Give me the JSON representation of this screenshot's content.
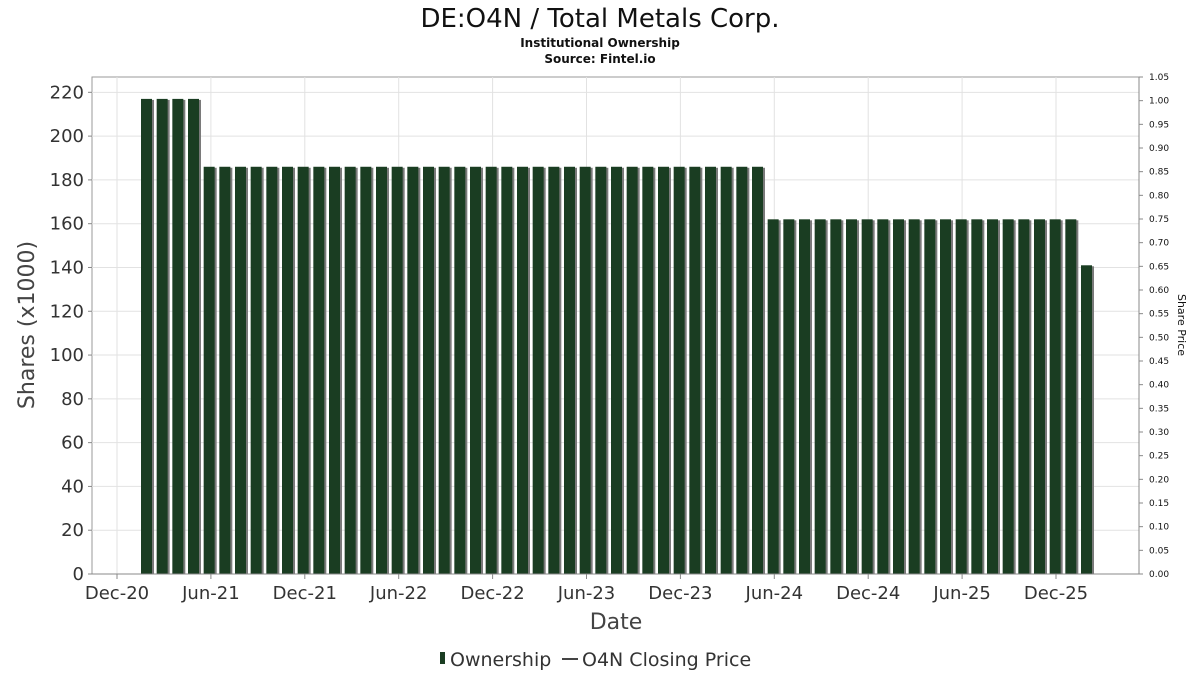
{
  "chart_data": {
    "type": "bar",
    "title": "DE:O4N / Total Metals Corp.",
    "subtitle": "Institutional Ownership",
    "source": "Source: Fintel.io",
    "xlabel": "Date",
    "ylabel": "Shares (x1000)",
    "y2label": "Share Price",
    "ylim": [
      0,
      227
    ],
    "y2lim": [
      0,
      1.05
    ],
    "yticks": [
      0,
      20,
      40,
      60,
      80,
      100,
      120,
      140,
      160,
      180,
      200,
      220
    ],
    "y2ticks": [
      "0.00",
      "0.05",
      "0.10",
      "0.15",
      "0.20",
      "0.25",
      "0.30",
      "0.35",
      "0.40",
      "0.45",
      "0.50",
      "0.55",
      "0.60",
      "0.65",
      "0.70",
      "0.75",
      "0.80",
      "0.85",
      "0.90",
      "0.95",
      "1.00",
      "1.05"
    ],
    "xticks": [
      "Dec-20",
      "Jun-21",
      "Dec-21",
      "Jun-22",
      "Dec-22",
      "Jun-23",
      "Dec-23",
      "Jun-24",
      "Dec-24",
      "Jun-25",
      "Dec-25"
    ],
    "grid": true,
    "legend_position": "bottom-center",
    "series": [
      {
        "name": "Ownership",
        "color": "#1a3d22",
        "values": [
          217,
          217,
          217,
          217,
          186,
          186,
          186,
          186,
          186,
          186,
          186,
          186,
          186,
          186,
          186,
          186,
          186,
          186,
          186,
          186,
          186,
          186,
          186,
          186,
          186,
          186,
          186,
          186,
          186,
          186,
          186,
          186,
          186,
          186,
          186,
          186,
          186,
          186,
          186,
          186,
          162,
          162,
          162,
          162,
          162,
          162,
          162,
          162,
          162,
          162,
          162,
          162,
          162,
          162,
          162,
          162,
          162,
          162,
          162,
          162,
          141
        ]
      },
      {
        "name": "O4N Closing Price",
        "color": "#444444",
        "values": []
      }
    ]
  }
}
